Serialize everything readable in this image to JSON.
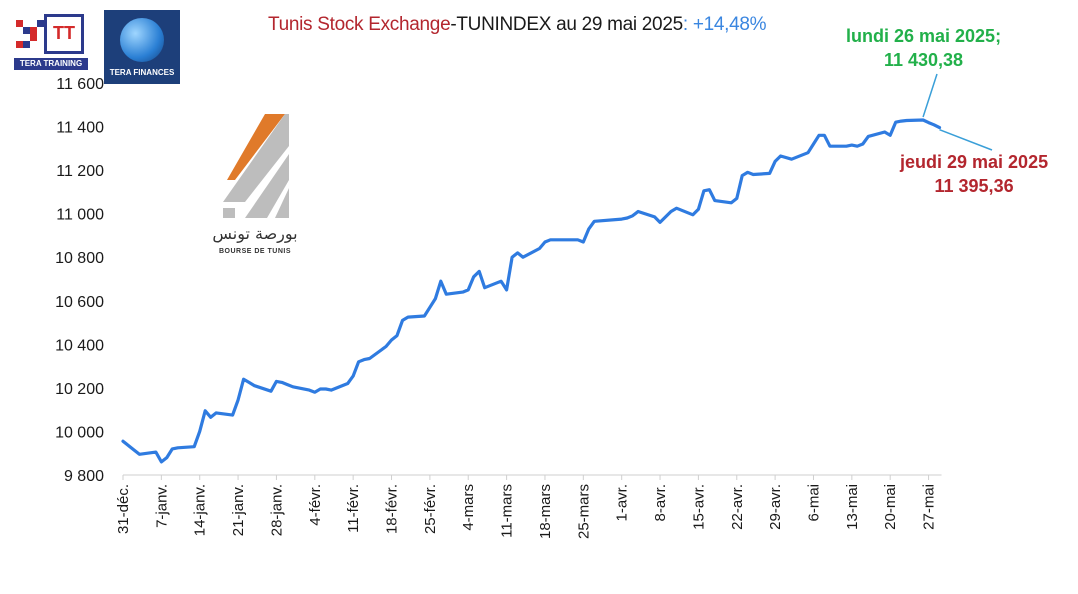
{
  "title": {
    "part1": "Tunis Stock Exchange",
    "part2": "-TUNINDEX au 29 mai 2025",
    "part3": ": +14,48%"
  },
  "logos": {
    "tera_training": "TERA TRAINING",
    "tera_training_mark": "TT",
    "tera_finances": "TERA FINANCES",
    "bvmt_arabic": "بورصة تونس",
    "bvmt_french": "BOURSE DE TUNIS"
  },
  "annotations": {
    "high_line1": "lundi 26 mai 2025;",
    "high_line2": "11 430,38",
    "last_line1": "jeudi 29 mai 2025",
    "last_line2": "11 395,36"
  },
  "colors": {
    "line": "#2f7be0",
    "title_red": "#b3262e",
    "title_blue": "#3a86e0",
    "annotation_green": "#22b04a",
    "annotation_red": "#b3262e",
    "axis": "#cfcfcf"
  },
  "chart_data": {
    "type": "line",
    "title": "Tunis Stock Exchange-TUNINDEX au 29 mai 2025 : +14,48%",
    "ylim": [
      9800,
      11600
    ],
    "yticks": [
      9800,
      10000,
      10200,
      10400,
      10600,
      10800,
      11000,
      11200,
      11400,
      11600
    ],
    "ytick_labels": [
      "9 800",
      "10 000",
      "10 200",
      "10 400",
      "10 600",
      "10 800",
      "11 000",
      "11 200",
      "11 400",
      "11 600"
    ],
    "xlim": [
      "2024-12-31",
      "2025-05-29"
    ],
    "xticks": [
      "2024-12-31",
      "2025-01-07",
      "2025-01-14",
      "2025-01-21",
      "2025-01-28",
      "2025-02-04",
      "2025-02-11",
      "2025-02-18",
      "2025-02-25",
      "2025-03-04",
      "2025-03-11",
      "2025-03-18",
      "2025-03-25",
      "2025-04-01",
      "2025-04-08",
      "2025-04-15",
      "2025-04-22",
      "2025-04-29",
      "2025-05-06",
      "2025-05-13",
      "2025-05-20",
      "2025-05-27"
    ],
    "xtick_labels": [
      "31-déc.",
      "7-janv.",
      "14-janv.",
      "21-janv.",
      "28-janv.",
      "4-févr.",
      "11-févr.",
      "18-févr.",
      "25-févr.",
      "4-mars",
      "11-mars",
      "18-mars",
      "25-mars",
      "1-avr.",
      "8-avr.",
      "15-avr.",
      "22-avr.",
      "29-avr.",
      "6-mai",
      "13-mai",
      "20-mai",
      "27-mai"
    ],
    "grid": false,
    "series": [
      {
        "x": [
          "2024-12-31",
          "2025-01-02",
          "2025-01-03",
          "2025-01-06",
          "2025-01-07",
          "2025-01-08",
          "2025-01-09",
          "2025-01-10",
          "2025-01-13",
          "2025-01-14",
          "2025-01-15",
          "2025-01-16",
          "2025-01-17",
          "2025-01-20",
          "2025-01-21",
          "2025-01-22",
          "2025-01-23",
          "2025-01-24",
          "2025-01-27",
          "2025-01-28",
          "2025-01-29",
          "2025-01-30",
          "2025-01-31",
          "2025-02-03",
          "2025-02-04",
          "2025-02-05",
          "2025-02-06",
          "2025-02-07",
          "2025-02-10",
          "2025-02-11",
          "2025-02-12",
          "2025-02-13",
          "2025-02-14",
          "2025-02-17",
          "2025-02-18",
          "2025-02-19",
          "2025-02-20",
          "2025-02-21",
          "2025-02-24",
          "2025-02-25",
          "2025-02-26",
          "2025-02-27",
          "2025-02-28",
          "2025-03-03",
          "2025-03-04",
          "2025-03-05",
          "2025-03-06",
          "2025-03-07",
          "2025-03-10",
          "2025-03-11",
          "2025-03-12",
          "2025-03-13",
          "2025-03-14",
          "2025-03-17",
          "2025-03-18",
          "2025-03-19",
          "2025-03-21",
          "2025-03-24",
          "2025-03-25",
          "2025-03-26",
          "2025-03-27",
          "2025-04-01",
          "2025-04-02",
          "2025-04-03",
          "2025-04-04",
          "2025-04-07",
          "2025-04-08",
          "2025-04-10",
          "2025-04-11",
          "2025-04-14",
          "2025-04-15",
          "2025-04-16",
          "2025-04-17",
          "2025-04-18",
          "2025-04-21",
          "2025-04-22",
          "2025-04-23",
          "2025-04-24",
          "2025-04-25",
          "2025-04-28",
          "2025-04-29",
          "2025-04-30",
          "2025-05-02",
          "2025-05-05",
          "2025-05-06",
          "2025-05-07",
          "2025-05-08",
          "2025-05-09",
          "2025-05-12",
          "2025-05-13",
          "2025-05-14",
          "2025-05-15",
          "2025-05-16",
          "2025-05-19",
          "2025-05-20",
          "2025-05-21",
          "2025-05-22",
          "2025-05-23",
          "2025-05-26",
          "2025-05-27",
          "2025-05-28",
          "2025-05-29"
        ],
        "y": [
          9955,
          9915,
          9895,
          9905,
          9860,
          9880,
          9920,
          9925,
          9930,
          10000,
          10095,
          10065,
          10085,
          10075,
          10145,
          10240,
          10225,
          10210,
          10185,
          10230,
          10225,
          10215,
          10205,
          10190,
          10180,
          10195,
          10195,
          10190,
          10220,
          10255,
          10320,
          10330,
          10335,
          10390,
          10420,
          10440,
          10510,
          10525,
          10530,
          10570,
          10610,
          10690,
          10630,
          10640,
          10650,
          10710,
          10735,
          10660,
          10690,
          10650,
          10800,
          10820,
          10800,
          10840,
          10870,
          10880,
          10880,
          10880,
          10870,
          10930,
          10965,
          10975,
          10980,
          10990,
          11010,
          10985,
          10960,
          11010,
          11025,
          10995,
          11020,
          11105,
          11110,
          11060,
          11050,
          11070,
          11175,
          11190,
          11180,
          11185,
          11240,
          11265,
          11250,
          11280,
          11320,
          11360,
          11360,
          11310,
          11310,
          11315,
          11310,
          11320,
          11355,
          11375,
          11360,
          11420,
          11425,
          11428,
          11430,
          11418,
          11408,
          11395
        ]
      }
    ]
  }
}
